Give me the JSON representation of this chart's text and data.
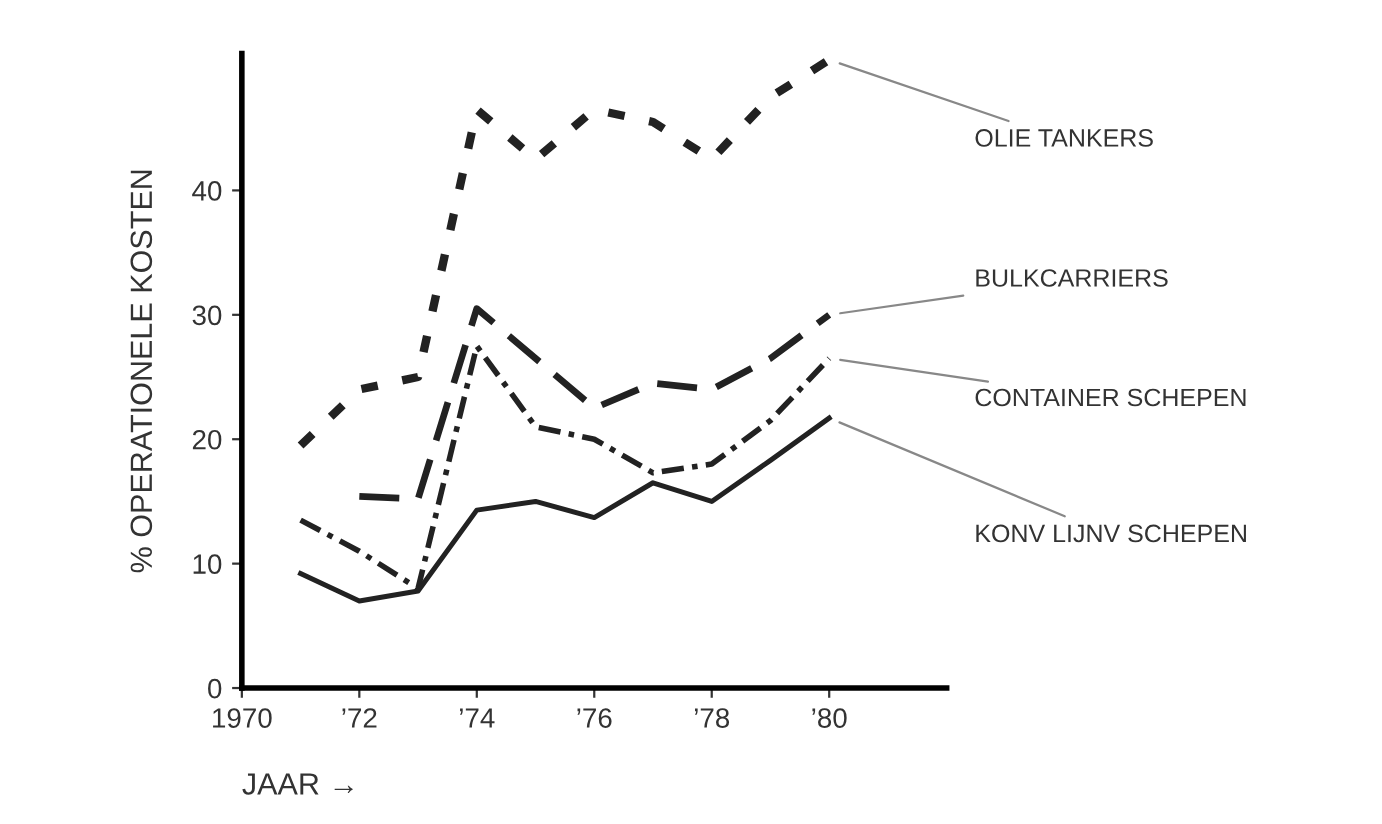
{
  "chart_data": {
    "type": "line",
    "ylabel": "% OPERATIONELE KOSTEN",
    "xlabel": "JAAR →",
    "x": [
      1971,
      1972,
      1973,
      1974,
      1975,
      1976,
      1977,
      1978,
      1979,
      1980
    ],
    "xlim": [
      1970,
      1982
    ],
    "xticks": [
      {
        "value": 1970,
        "label": "1970"
      },
      {
        "value": 1972,
        "label": "’72"
      },
      {
        "value": 1974,
        "label": "’74"
      },
      {
        "value": 1976,
        "label": "’76"
      },
      {
        "value": 1978,
        "label": "’78"
      },
      {
        "value": 1980,
        "label": "’80"
      }
    ],
    "ylim": [
      0,
      51
    ],
    "yticks": [
      0,
      10,
      20,
      30,
      40
    ],
    "grid": false,
    "legend": false,
    "series": [
      {
        "name": "OLIE TANKERS",
        "color": "#222222",
        "line_style": "dotted",
        "values": [
          19.5,
          24,
          25,
          46.5,
          42.5,
          46.5,
          45.5,
          42.5,
          47.5,
          50.5
        ]
      },
      {
        "name": "BULKCARRIERS",
        "color": "#222222",
        "line_style": "dashed",
        "values": [
          null,
          15.4,
          15.2,
          30.5,
          26.5,
          22.5,
          24.5,
          24,
          26.5,
          30
        ]
      },
      {
        "name": "CONTAINER SCHEPEN",
        "color": "#222222",
        "line_style": "dashdot",
        "values": [
          13.5,
          11,
          8,
          27.5,
          21,
          20,
          17.3,
          18,
          21.5,
          26.5
        ]
      },
      {
        "name": "KONV LIJNV SCHEPEN",
        "color": "#222222",
        "line_style": "solid",
        "values": [
          9.2,
          7,
          7.8,
          14.3,
          15,
          13.7,
          16.5,
          15,
          18.3,
          21.7
        ]
      }
    ]
  }
}
